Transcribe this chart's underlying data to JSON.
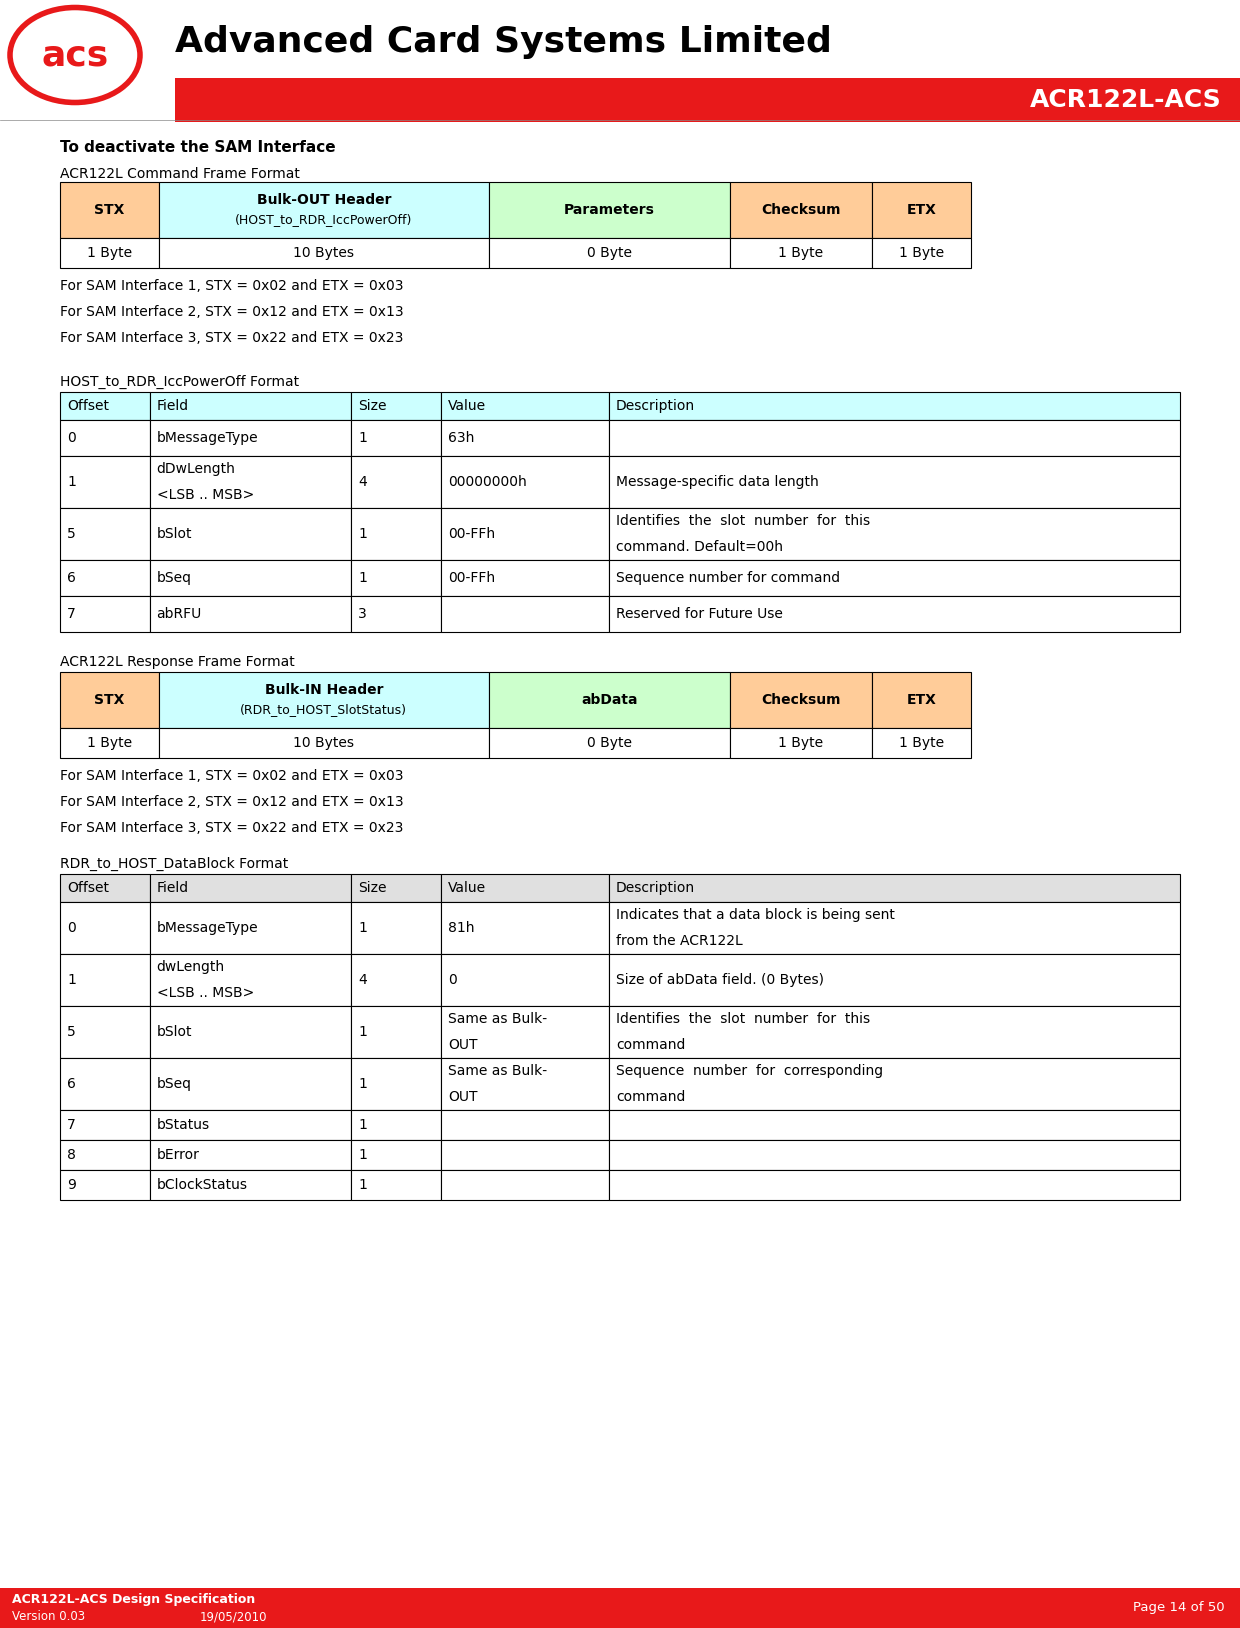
{
  "red": "#E8191A",
  "cmd_stx_color": "#FFCC99",
  "cmd_params_color": "#CCFFCC",
  "host_hdr_color": "#CCFFFF",
  "rdr_hdr_color": "#E0E0E0",
  "white": "#FFFFFF",
  "black": "#000000",
  "company": "Advanced Card Systems Limited",
  "product": "ACR122L-ACS",
  "section1": "To deactivate the SAM Interface",
  "cmd_frame_label": "ACR122L Command Frame Format",
  "cmd_headers": [
    "STX",
    "Bulk-OUT Header\n(HOST_to_RDR_IccPowerOff)",
    "Parameters",
    "Checksum",
    "ETX"
  ],
  "cmd_sizes": [
    "1 Byte",
    "10 Bytes",
    "0 Byte",
    "1 Byte",
    "1 Byte"
  ],
  "cmd_hdr_colors": [
    "#FFCC99",
    "#CCFFFF",
    "#CCFFCC",
    "#FFCC99",
    "#FFCC99"
  ],
  "sam_notes": [
    "For SAM Interface 1, STX = 0x02 and ETX = 0x03",
    "For SAM Interface 2, STX = 0x12 and ETX = 0x13",
    "For SAM Interface 3, STX = 0x22 and ETX = 0x23"
  ],
  "host_title": "HOST_to_RDR_IccPowerOff Format",
  "host_hdrs": [
    "Offset",
    "Field",
    "Size",
    "Value",
    "Description"
  ],
  "host_hdr_bg": "#CCFFFF",
  "host_rows": [
    [
      "0",
      "bMessageType",
      "1",
      "63h",
      ""
    ],
    [
      "1",
      "dDwLength\n<LSB .. MSB>",
      "4",
      "00000000h",
      "Message-specific data length"
    ],
    [
      "5",
      "bSlot",
      "1",
      "00-FFh",
      "Identifies  the  slot  number  for  this\ncommand. Default=00h"
    ],
    [
      "6",
      "bSeq",
      "1",
      "00-FFh",
      "Sequence number for command"
    ],
    [
      "7",
      "abRFU",
      "3",
      "",
      "Reserved for Future Use"
    ]
  ],
  "host_row_h": [
    36,
    52,
    52,
    36,
    36
  ],
  "resp_frame_label": "ACR122L Response Frame Format",
  "resp_headers": [
    "STX",
    "Bulk-IN Header\n(RDR_to_HOST_SlotStatus)",
    "abData",
    "Checksum",
    "ETX"
  ],
  "resp_sizes": [
    "1 Byte",
    "10 Bytes",
    "0 Byte",
    "1 Byte",
    "1 Byte"
  ],
  "resp_hdr_colors": [
    "#FFCC99",
    "#CCFFFF",
    "#CCFFCC",
    "#FFCC99",
    "#FFCC99"
  ],
  "rdr_title": "RDR_to_HOST_DataBlock Format",
  "rdr_hdrs": [
    "Offset",
    "Field",
    "Size",
    "Value",
    "Description"
  ],
  "rdr_hdr_bg": "#E0E0E0",
  "rdr_rows": [
    [
      "0",
      "bMessageType",
      "1",
      "81h",
      "Indicates that a data block is being sent\nfrom the ACR122L"
    ],
    [
      "1",
      "dwLength\n<LSB .. MSB>",
      "4",
      "0",
      "Size of abData field. (0 Bytes)"
    ],
    [
      "5",
      "bSlot",
      "1",
      "Same as Bulk-\nOUT",
      "Identifies  the  slot  number  for  this\ncommand"
    ],
    [
      "6",
      "bSeq",
      "1",
      "Same as Bulk-\nOUT",
      "Sequence  number  for  corresponding\ncommand"
    ],
    [
      "7",
      "bStatus",
      "1",
      "",
      ""
    ],
    [
      "8",
      "bError",
      "1",
      "",
      ""
    ],
    [
      "9",
      "bClockStatus",
      "1",
      "",
      ""
    ]
  ],
  "rdr_row_h": [
    52,
    52,
    52,
    52,
    30,
    30,
    30
  ],
  "footer_version": "Version 0.03",
  "footer_date": "19/05/2010",
  "footer_title": "ACR122L-ACS Design Specification",
  "footer_page": "Page 14 of 50"
}
